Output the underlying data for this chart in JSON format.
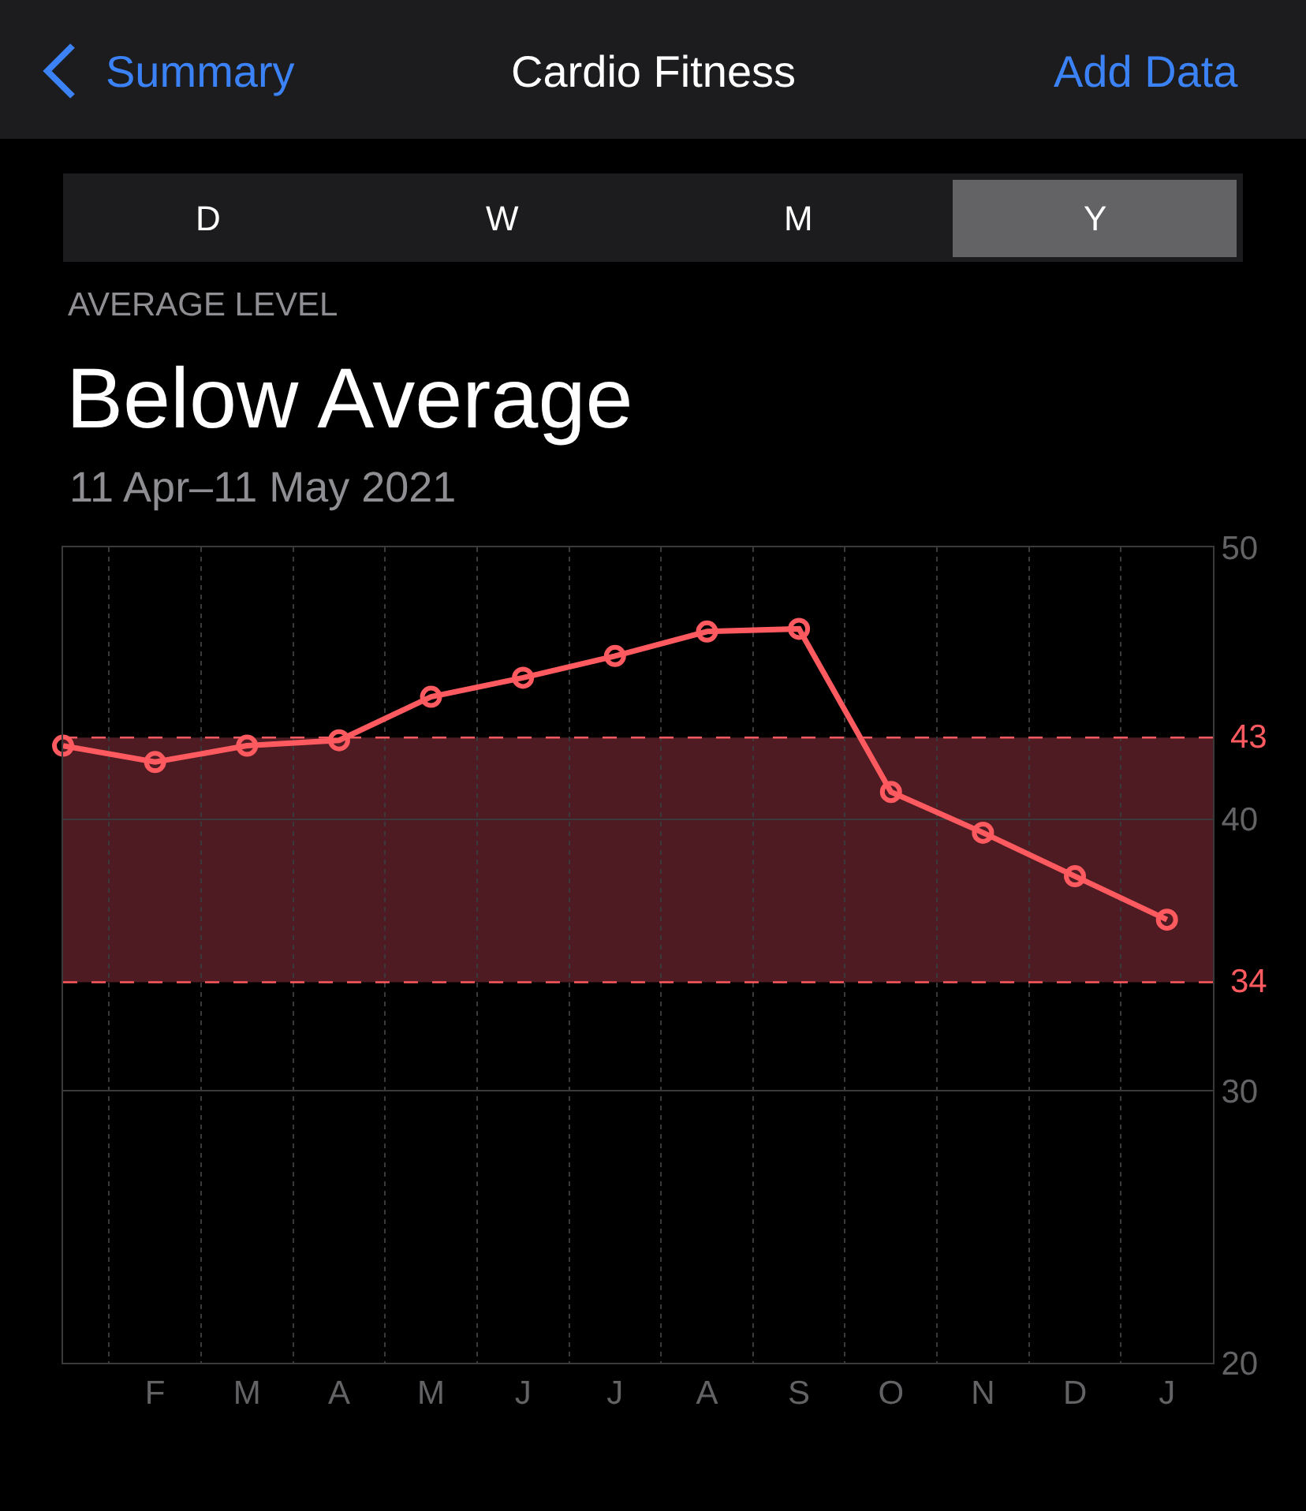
{
  "chart_data": {
    "type": "line",
    "title": "Below Average",
    "subtitle": "11 Apr–11 May 2021",
    "annotations": [
      "Summary",
      "Cardio Fitness",
      "Add Data",
      "D",
      "W",
      "M",
      "Y",
      "AVERAGE LEVEL"
    ],
    "categories": [
      null,
      "F",
      "M",
      "A",
      "M",
      "J",
      "J",
      "A",
      "S",
      "O",
      "N",
      "D",
      "J"
    ],
    "series": [
      {
        "color": "#ff5a5f",
        "values": [
          42.7,
          42.1,
          42.7,
          42.9,
          44.5,
          45.2,
          46.0,
          46.9,
          47.0,
          41.0,
          39.5,
          37.9,
          36.3
        ]
      }
    ],
    "ylim": [
      20,
      50
    ],
    "yticks": [
      20,
      30,
      40,
      50
    ],
    "ref_lines": [
      {
        "axis": "y",
        "value": 43,
        "label": "43",
        "color": "#ff5a5f",
        "line_style": "dashed"
      },
      {
        "axis": "y",
        "value": 34,
        "label": "34",
        "color": "#ff5a5f",
        "line_style": "dashed"
      }
    ],
    "bands": [
      {
        "axis": "y",
        "from": 34,
        "to": 43,
        "color": "#4d1b21"
      }
    ],
    "grid": true,
    "legend": false,
    "marker": "circle",
    "line_style": "solid"
  }
}
